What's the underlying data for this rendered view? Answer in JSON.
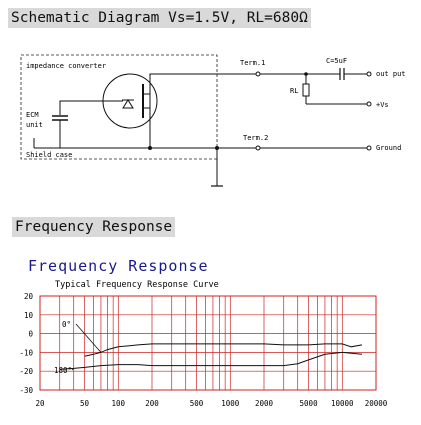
{
  "schematic": {
    "title": "Schematic Diagram Vs=1.5V, RL=680Ω",
    "box_label": "impedance converter",
    "ecm_label_1": "ECM",
    "ecm_label_2": "unit",
    "shield_label": "Shield case",
    "term1": "Term.1",
    "term2": "Term.2",
    "cap_label": "C=5uF",
    "rl_label": "RL",
    "out_label": "out put",
    "vs_label": "+Vs",
    "ground_label": "Ground"
  },
  "frequency": {
    "section_title": "Frequency Response",
    "chart_title": "Frequency Response",
    "subtitle": "Typical Frequency Response Curve",
    "angle_0": "0°",
    "angle_180": "180°",
    "grid_color": "#cc2222"
  },
  "chart_data": {
    "type": "line",
    "xscale": "log",
    "xlim": [
      20,
      20000
    ],
    "ylim": [
      -30,
      20
    ],
    "x_ticks": [
      20,
      50,
      100,
      200,
      500,
      1000,
      2000,
      5000,
      10000,
      20000
    ],
    "x_tick_labels": [
      "20",
      "50",
      "100",
      "200",
      "500",
      "1000",
      "2000",
      "5000",
      "10000",
      "20000"
    ],
    "y_ticks": [
      20,
      10,
      0,
      -10,
      -20,
      -30
    ],
    "y_tick_labels": [
      "20",
      "10",
      "0",
      "-10",
      "-20",
      "-30"
    ],
    "grid": true,
    "series": [
      {
        "name": "0°",
        "x": [
          50,
          60,
          70,
          80,
          100,
          150,
          200,
          300,
          500,
          1000,
          2000,
          3000,
          5000,
          7000,
          10000,
          12000,
          15000
        ],
        "y": [
          -12,
          -11,
          -10,
          -8.5,
          -7,
          -6,
          -5.5,
          -5.5,
          -5.5,
          -5.5,
          -5.5,
          -6,
          -6,
          -5.5,
          -5.5,
          -7,
          -6
        ]
      },
      {
        "name": "180°",
        "x": [
          30,
          40,
          50,
          70,
          100,
          150,
          200,
          300,
          500,
          1000,
          2000,
          3000,
          4000,
          5000,
          7000,
          10000,
          15000
        ],
        "y": [
          -19,
          -18.5,
          -18,
          -17,
          -16.5,
          -16.5,
          -17,
          -17,
          -17,
          -17,
          -17,
          -17,
          -16,
          -14,
          -11,
          -10,
          -11
        ]
      }
    ]
  }
}
